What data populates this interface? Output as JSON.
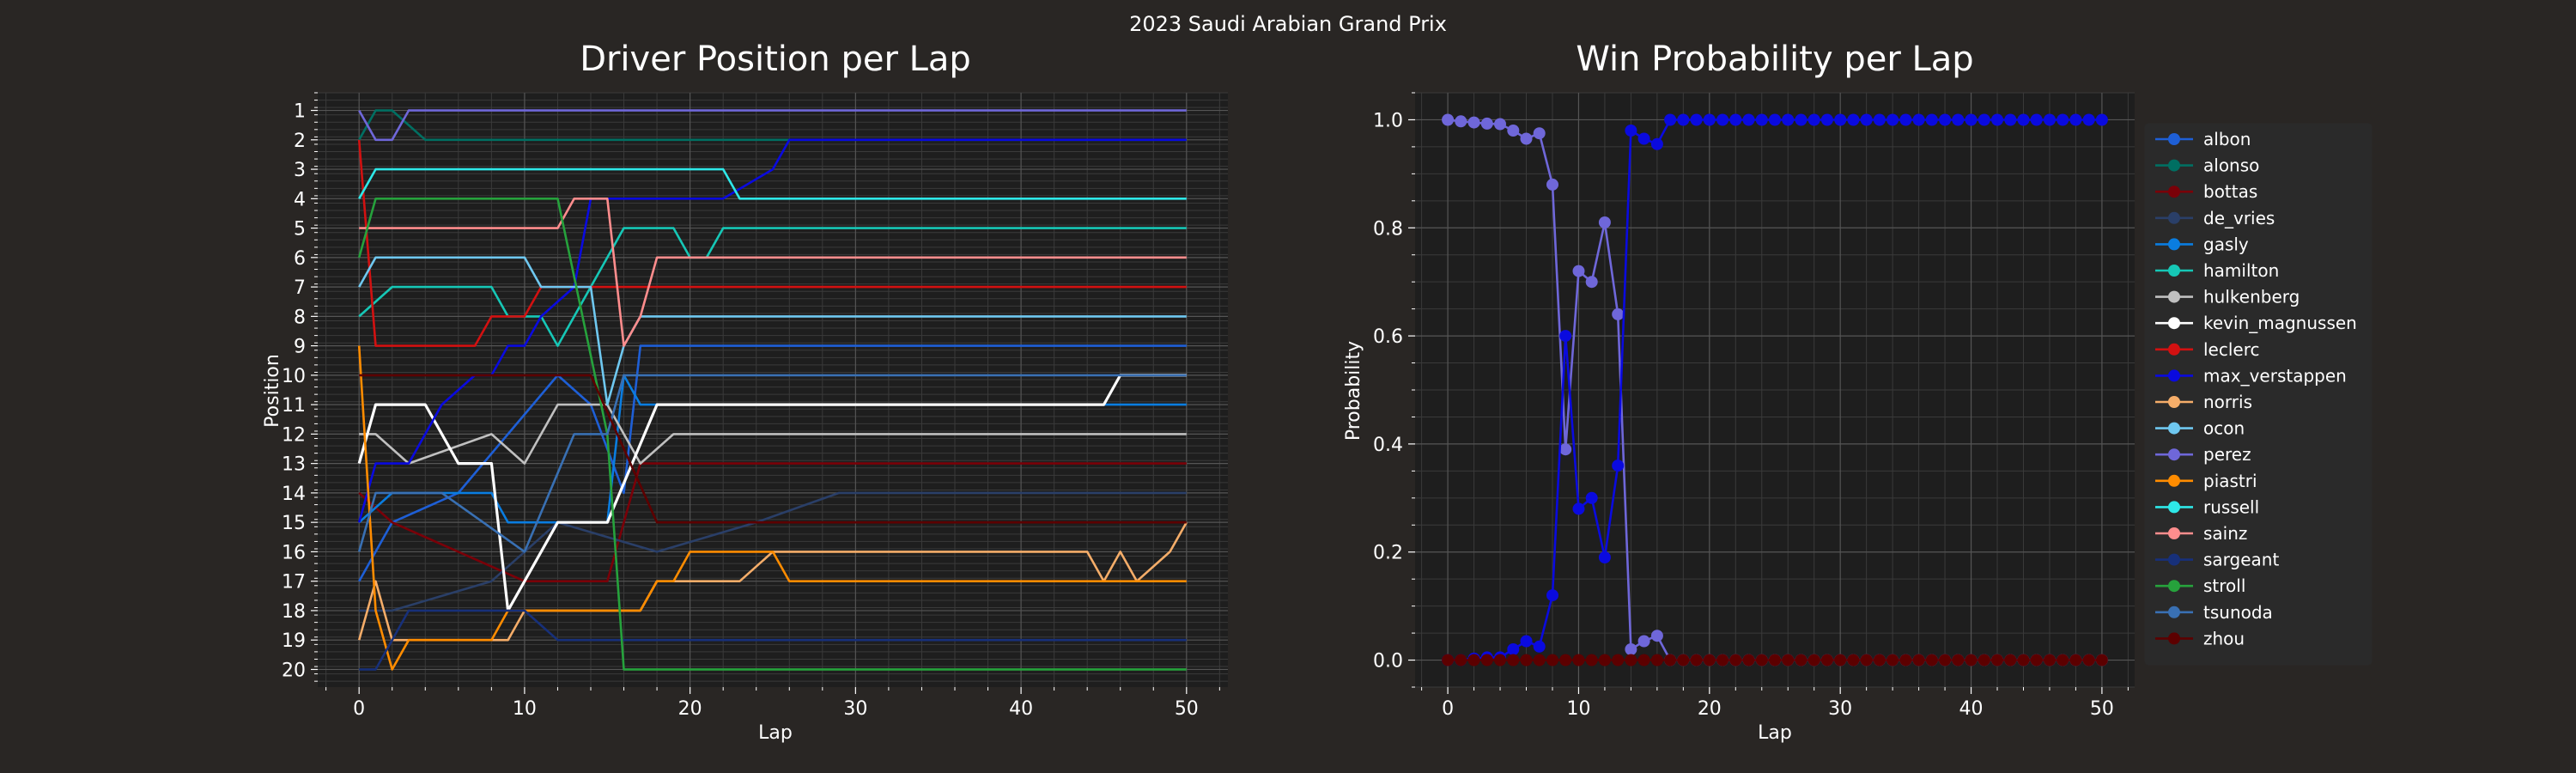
{
  "suptitle": "2023 Saudi Arabian Grand Prix",
  "colors": {
    "figure_bg": "#292624",
    "axes_bg": "#1e1e1e",
    "grid_major": "#555555",
    "grid_minor": "#3a3a3a",
    "text": "#ffffff",
    "legend_bg": "#2a2a2a"
  },
  "chart_data": [
    {
      "type": "line",
      "title": "Driver Position per Lap",
      "xlabel": "Lap",
      "ylabel": "Position",
      "xlim": [
        -2.5,
        52.5
      ],
      "ylim": [
        20.6,
        0.4
      ],
      "inverted_y": true,
      "xticks": [
        0,
        10,
        20,
        30,
        40,
        50
      ],
      "yticks": [
        1,
        2,
        3,
        4,
        5,
        6,
        7,
        8,
        9,
        10,
        11,
        12,
        13,
        14,
        15,
        16,
        17,
        18,
        19,
        20
      ],
      "grid": "major and minor",
      "series": [
        {
          "name": "albon",
          "color": "#1e5fd6",
          "points": [
            [
              0,
              17
            ],
            [
              2,
              15
            ],
            [
              6,
              14
            ],
            [
              9,
              12
            ],
            [
              12,
              10
            ],
            [
              14,
              11
            ],
            [
              16,
              14
            ],
            [
              17,
              9
            ],
            [
              20,
              9
            ],
            [
              50,
              9
            ]
          ]
        },
        {
          "name": "alonso",
          "color": "#006f62",
          "points": [
            [
              0,
              2
            ],
            [
              1,
              1
            ],
            [
              2,
              1
            ],
            [
              4,
              2
            ],
            [
              50,
              2
            ]
          ]
        },
        {
          "name": "bottas",
          "color": "#7a0008",
          "points": [
            [
              0,
              14
            ],
            [
              2,
              15
            ],
            [
              10,
              17
            ],
            [
              15,
              17
            ],
            [
              17,
              13
            ],
            [
              25,
              13
            ],
            [
              50,
              13
            ]
          ]
        },
        {
          "name": "de_vries",
          "color": "#2a3f68",
          "points": [
            [
              0,
              18
            ],
            [
              2,
              18
            ],
            [
              8,
              17
            ],
            [
              12,
              15
            ],
            [
              18,
              16
            ],
            [
              24,
              15
            ],
            [
              29,
              14
            ],
            [
              50,
              14
            ]
          ]
        },
        {
          "name": "gasly",
          "color": "#0a7de0",
          "points": [
            [
              0,
              15
            ],
            [
              2,
              14
            ],
            [
              8,
              14
            ],
            [
              9,
              15
            ],
            [
              15,
              15
            ],
            [
              16,
              10
            ],
            [
              17,
              11
            ],
            [
              22,
              11
            ],
            [
              50,
              11
            ]
          ]
        },
        {
          "name": "hamilton",
          "color": "#16c7b6",
          "points": [
            [
              0,
              8
            ],
            [
              2,
              7
            ],
            [
              8,
              7
            ],
            [
              9,
              8
            ],
            [
              11,
              8
            ],
            [
              12,
              9
            ],
            [
              13,
              8
            ],
            [
              16,
              5
            ],
            [
              19,
              5
            ],
            [
              20,
              6
            ],
            [
              21,
              6
            ],
            [
              22,
              5
            ],
            [
              50,
              5
            ]
          ]
        },
        {
          "name": "hulkenberg",
          "color": "#c0c0c0",
          "points": [
            [
              0,
              12
            ],
            [
              1,
              12
            ],
            [
              3,
              13
            ],
            [
              8,
              12
            ],
            [
              10,
              13
            ],
            [
              12,
              11
            ],
            [
              15,
              11
            ],
            [
              17,
              13
            ],
            [
              19,
              12
            ],
            [
              50,
              12
            ]
          ]
        },
        {
          "name": "kevin_magnussen",
          "color": "#ffffff",
          "points": [
            [
              0,
              13
            ],
            [
              1,
              11
            ],
            [
              4,
              11
            ],
            [
              6,
              13
            ],
            [
              8,
              13
            ],
            [
              9,
              18
            ],
            [
              10,
              17
            ],
            [
              12,
              15
            ],
            [
              15,
              15
            ],
            [
              18,
              11
            ],
            [
              45,
              11
            ],
            [
              46,
              10
            ],
            [
              50,
              10
            ]
          ]
        },
        {
          "name": "leclerc",
          "color": "#d21111",
          "points": [
            [
              0,
              2
            ],
            [
              1,
              9
            ],
            [
              7,
              9
            ],
            [
              8,
              8
            ],
            [
              10,
              8
            ],
            [
              11,
              7
            ],
            [
              16,
              7
            ],
            [
              50,
              7
            ]
          ]
        },
        {
          "name": "max_verstappen",
          "color": "#0a0adf",
          "points": [
            [
              0,
              15
            ],
            [
              1,
              13
            ],
            [
              3,
              13
            ],
            [
              5,
              11
            ],
            [
              7,
              10
            ],
            [
              8,
              10
            ],
            [
              9,
              9
            ],
            [
              10,
              9
            ],
            [
              11,
              8
            ],
            [
              13,
              7
            ],
            [
              14,
              4
            ],
            [
              22,
              4
            ],
            [
              25,
              3
            ],
            [
              26,
              2
            ],
            [
              50,
              2
            ]
          ]
        },
        {
          "name": "norris",
          "color": "#f5ad69",
          "points": [
            [
              0,
              19
            ],
            [
              1,
              17
            ],
            [
              2,
              19
            ],
            [
              9,
              19
            ],
            [
              10,
              18
            ],
            [
              17,
              18
            ],
            [
              18,
              17
            ],
            [
              23,
              17
            ],
            [
              25,
              16
            ],
            [
              44,
              16
            ],
            [
              45,
              17
            ],
            [
              46,
              16
            ],
            [
              47,
              17
            ],
            [
              49,
              16
            ],
            [
              50,
              15
            ]
          ]
        },
        {
          "name": "ocon",
          "color": "#6fc8f0",
          "points": [
            [
              0,
              7
            ],
            [
              1,
              6
            ],
            [
              10,
              6
            ],
            [
              11,
              7
            ],
            [
              14,
              7
            ],
            [
              15,
              11
            ],
            [
              16,
              9
            ],
            [
              17,
              8
            ],
            [
              50,
              8
            ]
          ]
        },
        {
          "name": "perez",
          "color": "#6f67d9",
          "points": [
            [
              0,
              1
            ],
            [
              1,
              2
            ],
            [
              2,
              2
            ],
            [
              3,
              1
            ],
            [
              50,
              1
            ]
          ]
        },
        {
          "name": "piastri",
          "color": "#ff8c00",
          "points": [
            [
              0,
              9
            ],
            [
              1,
              18
            ],
            [
              2,
              20
            ],
            [
              3,
              19
            ],
            [
              8,
              19
            ],
            [
              9,
              18
            ],
            [
              17,
              18
            ],
            [
              18,
              17
            ],
            [
              19,
              17
            ],
            [
              20,
              16
            ],
            [
              25,
              16
            ],
            [
              26,
              17
            ],
            [
              50,
              17
            ]
          ]
        },
        {
          "name": "russell",
          "color": "#2ee8e8",
          "points": [
            [
              0,
              4
            ],
            [
              1,
              3
            ],
            [
              22,
              3
            ],
            [
              23,
              4
            ],
            [
              50,
              4
            ]
          ]
        },
        {
          "name": "sainz",
          "color": "#ff8d8d",
          "points": [
            [
              0,
              5
            ],
            [
              12,
              5
            ],
            [
              13,
              4
            ],
            [
              15,
              4
            ],
            [
              16,
              9
            ],
            [
              17,
              8
            ],
            [
              18,
              6
            ],
            [
              50,
              6
            ]
          ]
        },
        {
          "name": "sargeant",
          "color": "#17307a",
          "points": [
            [
              0,
              20
            ],
            [
              1,
              20
            ],
            [
              3,
              18
            ],
            [
              10,
              18
            ],
            [
              12,
              19
            ],
            [
              50,
              19
            ]
          ]
        },
        {
          "name": "stroll",
          "color": "#26a23c",
          "points": [
            [
              0,
              6
            ],
            [
              1,
              4
            ],
            [
              12,
              4
            ],
            [
              15,
              12
            ],
            [
              16,
              20
            ],
            [
              50,
              20
            ]
          ]
        },
        {
          "name": "tsunoda",
          "color": "#3970b3",
          "points": [
            [
              0,
              16
            ],
            [
              1,
              14
            ],
            [
              5,
              14
            ],
            [
              10,
              16
            ],
            [
              13,
              12
            ],
            [
              15,
              12
            ],
            [
              16,
              10
            ],
            [
              18,
              10
            ],
            [
              26,
              10
            ],
            [
              50,
              10
            ]
          ]
        },
        {
          "name": "zhou",
          "color": "#5c0000",
          "points": [
            [
              0,
              10
            ],
            [
              2,
              10
            ],
            [
              10,
              10
            ],
            [
              14,
              10
            ],
            [
              18,
              15
            ],
            [
              35,
              15
            ],
            [
              50,
              15
            ]
          ]
        }
      ]
    },
    {
      "type": "line",
      "title": "Win Probability per Lap",
      "xlabel": "Lap",
      "ylabel": "Probability",
      "xlim": [
        -2.5,
        52.5
      ],
      "ylim": [
        -0.05,
        1.05
      ],
      "xticks": [
        0,
        10,
        20,
        30,
        40,
        50
      ],
      "yticks": [
        0.0,
        0.2,
        0.4,
        0.6,
        0.8,
        1.0
      ],
      "ytick_labels": [
        "0.0",
        "0.2",
        "0.4",
        "0.6",
        "0.8",
        "1.0"
      ],
      "grid": "major and minor",
      "legend": "right outside",
      "legend_entries": [
        "albon",
        "alonso",
        "bottas",
        "de_vries",
        "gasly",
        "hamilton",
        "hulkenberg",
        "kevin_magnussen",
        "leclerc",
        "max_verstappen",
        "norris",
        "ocon",
        "perez",
        "piastri",
        "russell",
        "sainz",
        "sargeant",
        "stroll",
        "tsunoda",
        "zhou"
      ],
      "x": [
        0,
        1,
        2,
        3,
        4,
        5,
        6,
        7,
        8,
        9,
        10,
        11,
        12,
        13,
        14,
        15,
        16,
        17,
        18,
        19,
        20,
        21,
        22,
        23,
        24,
        25,
        26,
        27,
        28,
        29,
        30,
        31,
        32,
        33,
        34,
        35,
        36,
        37,
        38,
        39,
        40,
        41,
        42,
        43,
        44,
        45,
        46,
        47,
        48,
        49,
        50
      ],
      "series": [
        {
          "name": "perez",
          "color": "#6f67d9",
          "values": [
            1.0,
            0.997,
            0.995,
            0.993,
            0.992,
            0.98,
            0.965,
            0.975,
            0.88,
            0.39,
            0.72,
            0.7,
            0.81,
            0.64,
            0.02,
            0.035,
            0.045,
            0.0,
            0.0,
            0.0,
            0.0,
            0.0,
            0.0,
            0.0,
            0.0,
            0.0,
            0.0,
            0.0,
            0.0,
            0.0,
            0.0,
            0.0,
            0.0,
            0.0,
            0.0,
            0.0,
            0.0,
            0.0,
            0.0,
            0.0,
            0.0,
            0.0,
            0.0,
            0.0,
            0.0,
            0.0,
            0.0,
            0.0,
            0.0,
            0.0,
            0.0
          ]
        },
        {
          "name": "max_verstappen",
          "color": "#0a0adf",
          "values": [
            0.0,
            0.0,
            0.003,
            0.005,
            0.005,
            0.02,
            0.035,
            0.025,
            0.12,
            0.6,
            0.28,
            0.3,
            0.19,
            0.36,
            0.98,
            0.965,
            0.955,
            1.0,
            1.0,
            1.0,
            1.0,
            1.0,
            1.0,
            1.0,
            1.0,
            1.0,
            1.0,
            1.0,
            1.0,
            1.0,
            1.0,
            1.0,
            1.0,
            1.0,
            1.0,
            1.0,
            1.0,
            1.0,
            1.0,
            1.0,
            1.0,
            1.0,
            1.0,
            1.0,
            1.0,
            1.0,
            1.0,
            1.0,
            1.0,
            1.0,
            1.0
          ]
        },
        {
          "name": "zhou",
          "color": "#5c0000",
          "values": [
            0,
            0,
            0,
            0,
            0,
            0,
            0,
            0,
            0,
            0,
            0,
            0,
            0,
            0,
            0,
            0,
            0,
            0,
            0,
            0,
            0,
            0,
            0,
            0,
            0,
            0,
            0,
            0,
            0,
            0,
            0,
            0,
            0,
            0,
            0,
            0,
            0,
            0,
            0,
            0,
            0,
            0,
            0,
            0,
            0,
            0,
            0,
            0,
            0,
            0,
            0
          ]
        }
      ]
    }
  ]
}
